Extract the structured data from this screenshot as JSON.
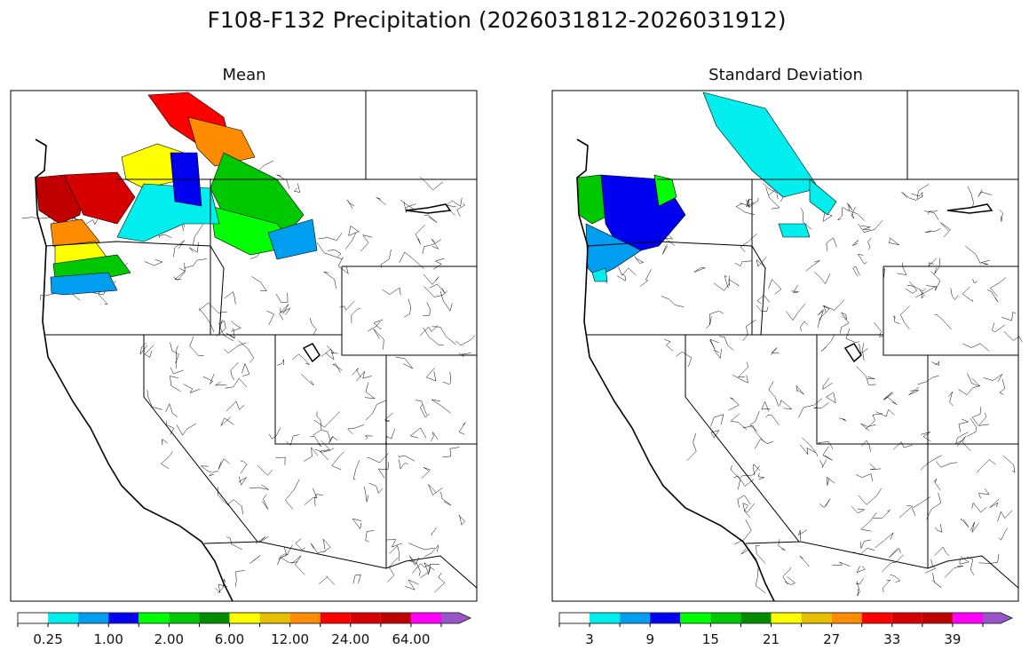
{
  "title": "F108-F132 Precipitation (2026031812-2026031912)",
  "chart_data": [
    {
      "type": "map",
      "title": "Mean",
      "colorbar": {
        "colors": [
          "#ffffff",
          "#00eeee",
          "#009ef0",
          "#0000f0",
          "#00ff00",
          "#00c800",
          "#008c00",
          "#ffff00",
          "#e6c000",
          "#ff8c00",
          "#ff0000",
          "#d60000",
          "#c00000",
          "#ff00ff",
          "#9955c8"
        ],
        "tick_labels": [
          "0.25",
          "1.00",
          "2.00",
          "6.00",
          "12.00",
          "24.00",
          "64.00"
        ],
        "extend": "max"
      },
      "shaded_regions": [
        {
          "area": "western Washington coast",
          "color_index": 12
        },
        {
          "area": "Olympic/Cascades",
          "color_index": 11
        },
        {
          "area": "southwest Washington",
          "color_index": 9
        },
        {
          "area": "northwest Oregon",
          "color_index": 7
        },
        {
          "area": "western Oregon",
          "color_index": 5
        },
        {
          "area": "southwest Oregon",
          "color_index": 2
        },
        {
          "area": "southern British Columbia coast",
          "color_index": 10
        },
        {
          "area": "central British Columbia",
          "color_index": 9
        },
        {
          "area": "interior British Columbia",
          "color_index": 7
        },
        {
          "area": "southeast British Columbia",
          "color_index": 5
        },
        {
          "area": "northern Idaho / Montana",
          "color_index": 4
        },
        {
          "area": "northwest Montana",
          "color_index": 2
        },
        {
          "area": "eastern Washington",
          "color_index": 1
        },
        {
          "area": "Kootenay",
          "color_index": 3
        }
      ]
    },
    {
      "type": "map",
      "title": "Standard Deviation",
      "colorbar": {
        "colors": [
          "#ffffff",
          "#00eeee",
          "#009ef0",
          "#0000f0",
          "#00ff00",
          "#00c800",
          "#008c00",
          "#ffff00",
          "#e6c000",
          "#ff8c00",
          "#ff0000",
          "#d60000",
          "#c00000",
          "#ff00ff",
          "#9955c8"
        ],
        "tick_labels": [
          "3",
          "9",
          "15",
          "21",
          "27",
          "33",
          "39"
        ],
        "extend": "max"
      },
      "shaded_regions": [
        {
          "area": "western Washington coast",
          "color_index": 5
        },
        {
          "area": "Puget Sound",
          "color_index": 3
        },
        {
          "area": "western Oregon",
          "color_index": 2
        },
        {
          "area": "northern Cascades",
          "color_index": 4
        },
        {
          "area": "British Columbia interior",
          "color_index": 1
        },
        {
          "area": "southeast British Columbia",
          "color_index": 1
        },
        {
          "area": "southwest Oregon",
          "color_index": 1
        },
        {
          "area": "northern Idaho",
          "color_index": 1
        }
      ]
    }
  ]
}
